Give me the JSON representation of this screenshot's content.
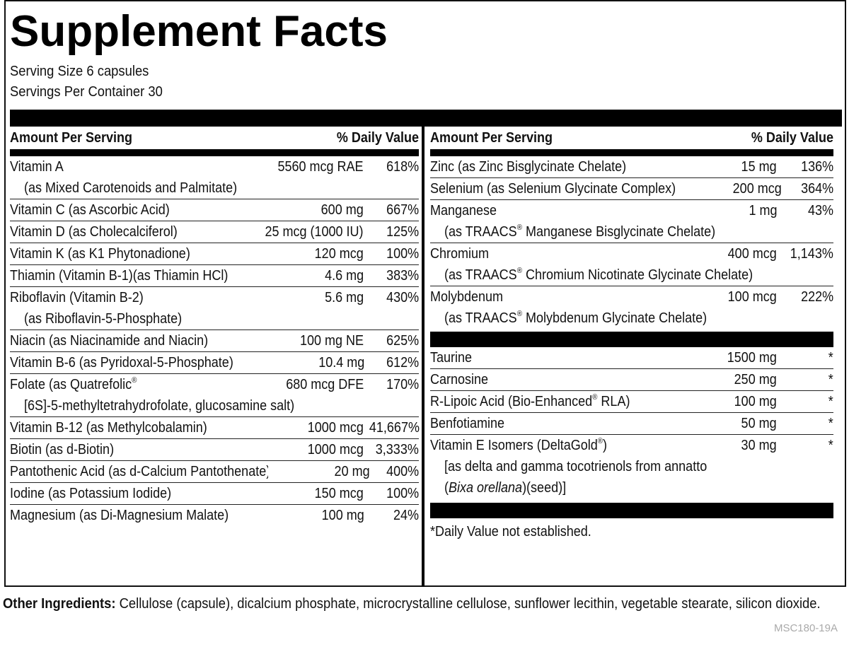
{
  "title": "Supplement Facts",
  "serving_size": "Serving Size 6 capsules",
  "servings_per_container": "Servings Per Container 30",
  "headers": {
    "amount": "Amount Per Serving",
    "daily_value": "% Daily Value"
  },
  "left_rows": [
    {
      "name": "Vitamin A",
      "amount": "5560 mcg RAE",
      "dv": "618%",
      "sub": "(as Mixed Carotenoids and Palmitate)"
    },
    {
      "name": "Vitamin C (as Ascorbic Acid)",
      "amount": "600 mg",
      "dv": "667%"
    },
    {
      "name": "Vitamin D (as Cholecalciferol)",
      "amount": "25 mcg (1000 IU)",
      "dv": "125%"
    },
    {
      "name": "Vitamin K (as K1 Phytonadione)",
      "amount": "120 mcg",
      "dv": "100%"
    },
    {
      "name": "Thiamin (Vitamin B-1)(as Thiamin HCl)",
      "amount": "4.6 mg",
      "dv": "383%"
    },
    {
      "name": "Riboflavin (Vitamin B-2)",
      "amount": "5.6 mg",
      "dv": "430%",
      "sub": "(as Riboflavin-5-Phosphate)"
    },
    {
      "name": "Niacin (as Niacinamide and Niacin)",
      "amount": "100 mg NE",
      "dv": "625%"
    },
    {
      "name": "Vitamin B-6 (as Pyridoxal-5-Phosphate)",
      "amount": "10.4 mg",
      "dv": "612%"
    },
    {
      "name": "Folate (as Quatrefolic®",
      "amount": "680 mcg DFE",
      "dv": "170%",
      "sub": "[6S]-5-methyltetrahydrofolate, glucosamine salt)"
    },
    {
      "name": "Vitamin B-12 (as Methylcobalamin)",
      "amount": "1000 mcg",
      "dv": "41,667%"
    },
    {
      "name": "Biotin (as d-Biotin)",
      "amount": "1000 mcg",
      "dv": "3,333%"
    },
    {
      "name": "Pantothenic Acid (as d-Calcium Pantothenate)",
      "amount": "20 mg",
      "dv": "400%"
    },
    {
      "name": "Iodine (as Potassium Iodide)",
      "amount": "150 mcg",
      "dv": "100%"
    },
    {
      "name": "Magnesium (as Di-Magnesium Malate)",
      "amount": "100 mg",
      "dv": "24%"
    }
  ],
  "right_rows": [
    {
      "name": "Zinc (as Zinc Bisglycinate Chelate)",
      "amount": "15 mg",
      "dv": "136%"
    },
    {
      "name": "Selenium (as Selenium Glycinate Complex)",
      "amount": "200 mcg",
      "dv": "364%"
    },
    {
      "name": "Manganese",
      "amount": "1 mg",
      "dv": "43%",
      "sub": "(as TRAACS® Manganese Bisglycinate Chelate)"
    },
    {
      "name": "Chromium",
      "amount": "400 mcg",
      "dv": "1,143%",
      "sub": "(as TRAACS® Chromium Nicotinate Glycinate Chelate)"
    },
    {
      "name": "Molybdenum",
      "amount": "100 mcg",
      "dv": "222%",
      "sub": "(as TRAACS® Molybdenum Glycinate Chelate)"
    }
  ],
  "right_rows_2": [
    {
      "name": "Taurine",
      "amount": "1500 mg",
      "dv": "*"
    },
    {
      "name": "Carnosine",
      "amount": "250 mg",
      "dv": "*"
    },
    {
      "name": "R-Lipoic Acid (Bio-Enhanced® RLA)",
      "amount": "100 mg",
      "dv": "*"
    },
    {
      "name": "Benfotiamine",
      "amount": "50 mg",
      "dv": "*"
    },
    {
      "name": "Vitamin E Isomers (DeltaGold®)",
      "amount": "30 mg",
      "dv": "*",
      "sub": "[as delta and gamma tocotrienols from annatto",
      "sub2_italic": "Bixa orellana",
      "sub2_rest": ")(seed)]"
    }
  ],
  "footnote": "*Daily Value not established.",
  "other_label": "Other Ingredients:",
  "other_text": " Cellulose (capsule), dicalcium phosphate, microcrystalline cellulose, sunflower lecithin, vegetable stearate, silicon dioxide.",
  "code": "MSC180-19A"
}
